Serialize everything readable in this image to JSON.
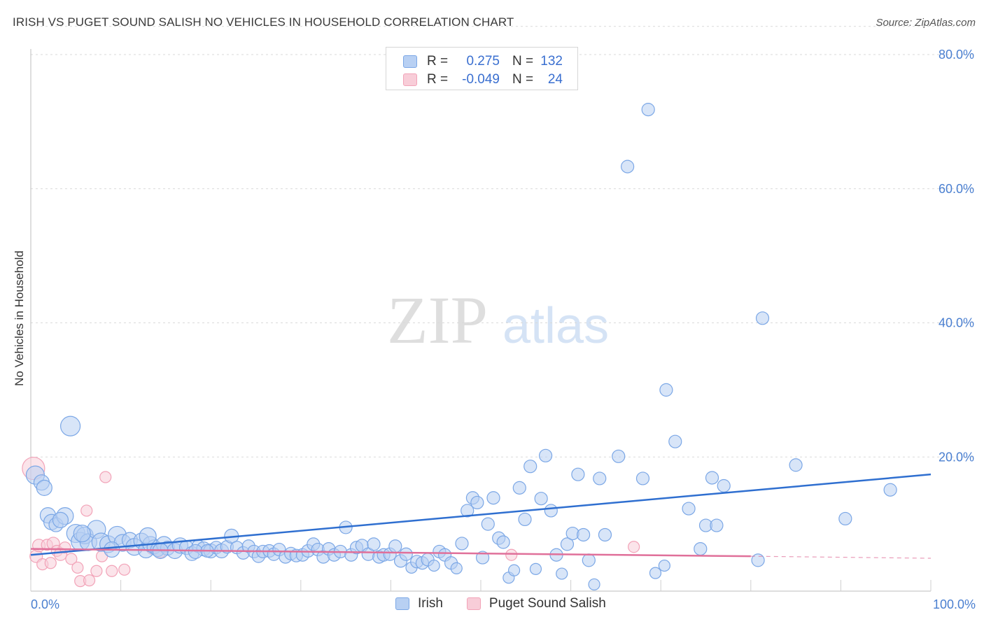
{
  "chart_data": {
    "type": "scatter",
    "title": "IRISH VS PUGET SOUND SALISH NO VEHICLES IN HOUSEHOLD CORRELATION CHART",
    "source": "Source: ZipAtlas.com",
    "xlabel": "",
    "ylabel": "No Vehicles in Household",
    "xlim": [
      0,
      100
    ],
    "ylim": [
      0,
      84
    ],
    "x_tick_labels": [
      "0.0%",
      "100.0%"
    ],
    "y_ticks": [
      20,
      40,
      60,
      80
    ],
    "y_tick_labels": [
      "20.0%",
      "40.0%",
      "60.0%",
      "80.0%"
    ],
    "grid": true,
    "watermark": {
      "zip": "ZIP",
      "atlas": "atlas"
    },
    "legend": [
      {
        "r_label": "R =",
        "r_value": "0.275",
        "n_label": "N =",
        "n_value": "132"
      },
      {
        "r_label": "R =",
        "r_value": "-0.049",
        "n_label": "N =",
        "n_value": "24"
      }
    ],
    "series": [
      {
        "name": "Irish",
        "color": "#7ba7e6",
        "fill": "#b8d0f3",
        "line_color": "#2f6fd0",
        "trend": {
          "x": [
            0,
            100
          ],
          "y": [
            5.4,
            17.4
          ]
        },
        "points": [
          {
            "x": 0.5,
            "y": 17.3,
            "s": 13
          },
          {
            "x": 1.2,
            "y": 16.2,
            "s": 11
          },
          {
            "x": 1.5,
            "y": 15.4,
            "s": 11
          },
          {
            "x": 4.4,
            "y": 24.6,
            "s": 14
          },
          {
            "x": 1.9,
            "y": 11.3,
            "s": 11
          },
          {
            "x": 2.3,
            "y": 10.3,
            "s": 11
          },
          {
            "x": 2.8,
            "y": 9.9,
            "s": 10
          },
          {
            "x": 3.8,
            "y": 11.2,
            "s": 12
          },
          {
            "x": 5.0,
            "y": 8.6,
            "s": 13
          },
          {
            "x": 5.5,
            "y": 7.4,
            "s": 13
          },
          {
            "x": 6.0,
            "y": 8.3,
            "s": 12
          },
          {
            "x": 6.4,
            "y": 7.3,
            "s": 12
          },
          {
            "x": 7.3,
            "y": 9.2,
            "s": 13
          },
          {
            "x": 7.8,
            "y": 7.3,
            "s": 13
          },
          {
            "x": 8.6,
            "y": 7.0,
            "s": 12
          },
          {
            "x": 9.6,
            "y": 8.3,
            "s": 13
          },
          {
            "x": 10.2,
            "y": 7.2,
            "s": 12
          },
          {
            "x": 11.0,
            "y": 7.6,
            "s": 11
          },
          {
            "x": 11.5,
            "y": 6.6,
            "s": 12
          },
          {
            "x": 12.3,
            "y": 7.5,
            "s": 11
          },
          {
            "x": 12.8,
            "y": 6.1,
            "s": 11
          },
          {
            "x": 13.3,
            "y": 7.0,
            "s": 11
          },
          {
            "x": 13.7,
            "y": 6.6,
            "s": 10
          },
          {
            "x": 14.1,
            "y": 6.2,
            "s": 10
          },
          {
            "x": 14.8,
            "y": 7.0,
            "s": 11
          },
          {
            "x": 15.2,
            "y": 6.4,
            "s": 10
          },
          {
            "x": 16.0,
            "y": 6.0,
            "s": 11
          },
          {
            "x": 16.6,
            "y": 6.8,
            "s": 11
          },
          {
            "x": 17.3,
            "y": 6.5,
            "s": 10
          },
          {
            "x": 17.9,
            "y": 5.6,
            "s": 10
          },
          {
            "x": 18.6,
            "y": 6.7,
            "s": 9
          },
          {
            "x": 19.2,
            "y": 6.3,
            "s": 10
          },
          {
            "x": 20.0,
            "y": 6.0,
            "s": 10
          },
          {
            "x": 20.6,
            "y": 6.5,
            "s": 9
          },
          {
            "x": 21.2,
            "y": 6.0,
            "s": 10
          },
          {
            "x": 21.8,
            "y": 6.6,
            "s": 9
          },
          {
            "x": 22.3,
            "y": 8.2,
            "s": 10
          },
          {
            "x": 22.9,
            "y": 6.5,
            "s": 9
          },
          {
            "x": 23.6,
            "y": 5.7,
            "s": 9
          },
          {
            "x": 24.2,
            "y": 6.7,
            "s": 9
          },
          {
            "x": 24.8,
            "y": 5.9,
            "s": 9
          },
          {
            "x": 25.3,
            "y": 5.2,
            "s": 9
          },
          {
            "x": 25.8,
            "y": 5.9,
            "s": 9
          },
          {
            "x": 26.5,
            "y": 6.0,
            "s": 9
          },
          {
            "x": 27.0,
            "y": 5.5,
            "s": 9
          },
          {
            "x": 27.6,
            "y": 6.2,
            "s": 9
          },
          {
            "x": 28.3,
            "y": 5.1,
            "s": 9
          },
          {
            "x": 28.9,
            "y": 5.6,
            "s": 9
          },
          {
            "x": 29.5,
            "y": 5.3,
            "s": 9
          },
          {
            "x": 30.2,
            "y": 5.4,
            "s": 9
          },
          {
            "x": 30.8,
            "y": 6.0,
            "s": 9
          },
          {
            "x": 31.4,
            "y": 7.0,
            "s": 9
          },
          {
            "x": 31.9,
            "y": 6.2,
            "s": 9
          },
          {
            "x": 32.5,
            "y": 5.1,
            "s": 9
          },
          {
            "x": 33.1,
            "y": 6.3,
            "s": 9
          },
          {
            "x": 33.7,
            "y": 5.4,
            "s": 9
          },
          {
            "x": 34.4,
            "y": 5.9,
            "s": 9
          },
          {
            "x": 35.0,
            "y": 9.5,
            "s": 9
          },
          {
            "x": 35.6,
            "y": 5.4,
            "s": 9
          },
          {
            "x": 36.2,
            "y": 6.5,
            "s": 9
          },
          {
            "x": 36.8,
            "y": 6.8,
            "s": 9
          },
          {
            "x": 37.5,
            "y": 5.5,
            "s": 9
          },
          {
            "x": 38.1,
            "y": 7.0,
            "s": 9
          },
          {
            "x": 38.7,
            "y": 5.1,
            "s": 9
          },
          {
            "x": 39.2,
            "y": 5.4,
            "s": 9
          },
          {
            "x": 39.9,
            "y": 5.5,
            "s": 9
          },
          {
            "x": 40.5,
            "y": 6.7,
            "s": 9
          },
          {
            "x": 41.1,
            "y": 4.5,
            "s": 9
          },
          {
            "x": 41.7,
            "y": 5.5,
            "s": 9
          },
          {
            "x": 42.3,
            "y": 3.5,
            "s": 8
          },
          {
            "x": 42.9,
            "y": 4.4,
            "s": 9
          },
          {
            "x": 43.5,
            "y": 4.2,
            "s": 9
          },
          {
            "x": 44.1,
            "y": 4.7,
            "s": 9
          },
          {
            "x": 44.8,
            "y": 3.8,
            "s": 8
          },
          {
            "x": 45.4,
            "y": 5.9,
            "s": 9
          },
          {
            "x": 46.0,
            "y": 5.4,
            "s": 9
          },
          {
            "x": 46.7,
            "y": 4.2,
            "s": 9
          },
          {
            "x": 47.3,
            "y": 3.4,
            "s": 8
          },
          {
            "x": 47.9,
            "y": 7.1,
            "s": 9
          },
          {
            "x": 48.5,
            "y": 12.0,
            "s": 9
          },
          {
            "x": 49.1,
            "y": 13.9,
            "s": 9
          },
          {
            "x": 49.6,
            "y": 13.2,
            "s": 9
          },
          {
            "x": 50.2,
            "y": 5.0,
            "s": 9
          },
          {
            "x": 50.8,
            "y": 10.0,
            "s": 9
          },
          {
            "x": 51.4,
            "y": 13.9,
            "s": 9
          },
          {
            "x": 52.0,
            "y": 7.9,
            "s": 9
          },
          {
            "x": 52.5,
            "y": 7.3,
            "s": 9
          },
          {
            "x": 53.1,
            "y": 2.0,
            "s": 8
          },
          {
            "x": 53.7,
            "y": 3.1,
            "s": 8
          },
          {
            "x": 54.3,
            "y": 15.4,
            "s": 9
          },
          {
            "x": 54.9,
            "y": 10.7,
            "s": 9
          },
          {
            "x": 55.5,
            "y": 18.6,
            "s": 9
          },
          {
            "x": 56.1,
            "y": 3.3,
            "s": 8
          },
          {
            "x": 56.7,
            "y": 13.8,
            "s": 9
          },
          {
            "x": 57.2,
            "y": 20.2,
            "s": 9
          },
          {
            "x": 57.8,
            "y": 12.0,
            "s": 9
          },
          {
            "x": 58.4,
            "y": 5.4,
            "s": 9
          },
          {
            "x": 59.0,
            "y": 2.6,
            "s": 8
          },
          {
            "x": 59.6,
            "y": 7.0,
            "s": 9
          },
          {
            "x": 60.2,
            "y": 8.6,
            "s": 9
          },
          {
            "x": 60.8,
            "y": 17.4,
            "s": 9
          },
          {
            "x": 61.4,
            "y": 8.4,
            "s": 9
          },
          {
            "x": 62.0,
            "y": 4.6,
            "s": 9
          },
          {
            "x": 62.6,
            "y": 1.0,
            "s": 8
          },
          {
            "x": 63.2,
            "y": 16.8,
            "s": 9
          },
          {
            "x": 63.8,
            "y": 8.4,
            "s": 9
          },
          {
            "x": 65.3,
            "y": 20.1,
            "s": 9
          },
          {
            "x": 66.3,
            "y": 63.3,
            "s": 9
          },
          {
            "x": 68.0,
            "y": 16.8,
            "s": 9
          },
          {
            "x": 68.6,
            "y": 71.8,
            "s": 9
          },
          {
            "x": 69.4,
            "y": 2.7,
            "s": 8
          },
          {
            "x": 70.4,
            "y": 3.8,
            "s": 8
          },
          {
            "x": 70.6,
            "y": 30.0,
            "s": 9
          },
          {
            "x": 71.6,
            "y": 22.3,
            "s": 9
          },
          {
            "x": 73.1,
            "y": 12.3,
            "s": 9
          },
          {
            "x": 74.4,
            "y": 6.3,
            "s": 9
          },
          {
            "x": 75.0,
            "y": 9.8,
            "s": 9
          },
          {
            "x": 75.7,
            "y": 16.9,
            "s": 9
          },
          {
            "x": 76.2,
            "y": 9.8,
            "s": 9
          },
          {
            "x": 77.0,
            "y": 15.7,
            "s": 9
          },
          {
            "x": 80.8,
            "y": 4.6,
            "s": 9
          },
          {
            "x": 81.3,
            "y": 40.7,
            "s": 9
          },
          {
            "x": 85.0,
            "y": 18.8,
            "s": 9
          },
          {
            "x": 90.5,
            "y": 10.8,
            "s": 9
          },
          {
            "x": 95.5,
            "y": 15.1,
            "s": 9
          },
          {
            "x": 3.3,
            "y": 10.6,
            "s": 11
          },
          {
            "x": 5.7,
            "y": 8.6,
            "s": 12
          },
          {
            "x": 9.0,
            "y": 6.2,
            "s": 11
          },
          {
            "x": 13.0,
            "y": 8.2,
            "s": 12
          },
          {
            "x": 14.4,
            "y": 6.0,
            "s": 11
          },
          {
            "x": 18.3,
            "y": 5.9,
            "s": 10
          },
          {
            "x": 19.6,
            "y": 6.0,
            "s": 9
          }
        ]
      },
      {
        "name": "Puget Sound Salish",
        "color": "#f2a3b8",
        "fill": "#f8cdd8",
        "line_color": "#e0709a",
        "trend": {
          "x": [
            0,
            80
          ],
          "y": [
            6.3,
            5.2
          ]
        },
        "trend_dashed_to": {
          "x": 100,
          "y": 4.9
        },
        "points": [
          {
            "x": 0.3,
            "y": 18.3,
            "s": 16
          },
          {
            "x": 0.6,
            "y": 5.2,
            "s": 9
          },
          {
            "x": 0.9,
            "y": 6.8,
            "s": 9
          },
          {
            "x": 1.3,
            "y": 4.0,
            "s": 8
          },
          {
            "x": 1.8,
            "y": 6.9,
            "s": 8
          },
          {
            "x": 2.2,
            "y": 4.2,
            "s": 8
          },
          {
            "x": 2.5,
            "y": 7.1,
            "s": 9
          },
          {
            "x": 2.9,
            "y": 6.0,
            "s": 8
          },
          {
            "x": 3.3,
            "y": 5.5,
            "s": 9
          },
          {
            "x": 3.8,
            "y": 6.5,
            "s": 8
          },
          {
            "x": 4.5,
            "y": 4.8,
            "s": 8
          },
          {
            "x": 5.2,
            "y": 3.5,
            "s": 8
          },
          {
            "x": 5.5,
            "y": 1.5,
            "s": 8
          },
          {
            "x": 6.2,
            "y": 12.0,
            "s": 8
          },
          {
            "x": 6.5,
            "y": 1.6,
            "s": 8
          },
          {
            "x": 7.3,
            "y": 3.0,
            "s": 8
          },
          {
            "x": 7.9,
            "y": 5.2,
            "s": 8
          },
          {
            "x": 8.3,
            "y": 17.0,
            "s": 8
          },
          {
            "x": 9.0,
            "y": 3.0,
            "s": 8
          },
          {
            "x": 10.4,
            "y": 3.2,
            "s": 8
          },
          {
            "x": 13.5,
            "y": 6.3,
            "s": 8
          },
          {
            "x": 14.4,
            "y": 5.8,
            "s": 8
          },
          {
            "x": 53.4,
            "y": 5.4,
            "s": 8
          },
          {
            "x": 67.0,
            "y": 6.6,
            "s": 8
          }
        ]
      }
    ]
  }
}
